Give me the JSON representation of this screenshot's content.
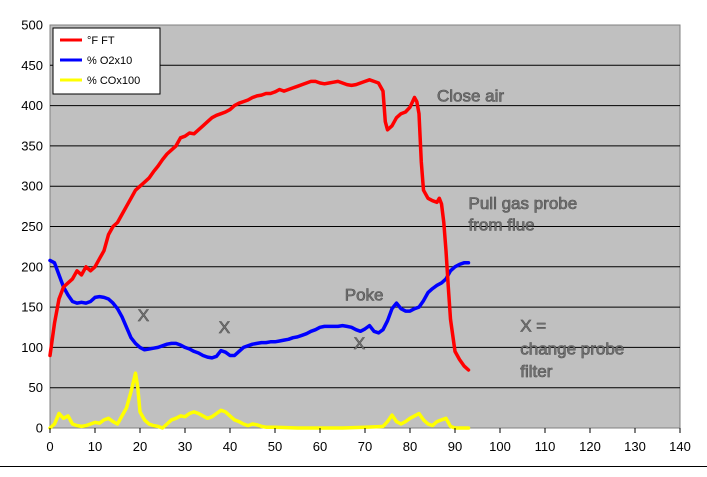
{
  "chart_data": {
    "type": "line",
    "xlim": [
      0,
      140
    ],
    "ylim": [
      0,
      500
    ],
    "x_ticks": [
      "0",
      "10",
      "20",
      "30",
      "40",
      "50",
      "60",
      "70",
      "80",
      "90",
      "100",
      "110",
      "120",
      "130",
      "140"
    ],
    "y_ticks": [
      "0",
      "50",
      "100",
      "150",
      "200",
      "250",
      "300",
      "350",
      "400",
      "450",
      "500"
    ],
    "grid": "horizontal",
    "legend_position": "top-left",
    "plot_background": "#c0c0c0",
    "series": [
      {
        "name": "°F FT",
        "color": "#ff0000",
        "points": [
          [
            0,
            90
          ],
          [
            1,
            130
          ],
          [
            2,
            160
          ],
          [
            3,
            175
          ],
          [
            4,
            180
          ],
          [
            5,
            185
          ],
          [
            6,
            195
          ],
          [
            7,
            190
          ],
          [
            8,
            200
          ],
          [
            9,
            195
          ],
          [
            10,
            200
          ],
          [
            11,
            210
          ],
          [
            12,
            220
          ],
          [
            13,
            240
          ],
          [
            14,
            250
          ],
          [
            15,
            255
          ],
          [
            16,
            265
          ],
          [
            17,
            275
          ],
          [
            18,
            285
          ],
          [
            19,
            295
          ],
          [
            20,
            300
          ],
          [
            21,
            305
          ],
          [
            22,
            310
          ],
          [
            23,
            318
          ],
          [
            24,
            325
          ],
          [
            25,
            333
          ],
          [
            26,
            340
          ],
          [
            27,
            345
          ],
          [
            28,
            350
          ],
          [
            29,
            360
          ],
          [
            30,
            362
          ],
          [
            31,
            366
          ],
          [
            32,
            365
          ],
          [
            33,
            370
          ],
          [
            34,
            375
          ],
          [
            35,
            380
          ],
          [
            36,
            385
          ],
          [
            37,
            388
          ],
          [
            38,
            390
          ],
          [
            39,
            392
          ],
          [
            40,
            395
          ],
          [
            41,
            400
          ],
          [
            42,
            403
          ],
          [
            43,
            405
          ],
          [
            44,
            407
          ],
          [
            45,
            410
          ],
          [
            46,
            412
          ],
          [
            47,
            413
          ],
          [
            48,
            415
          ],
          [
            49,
            415
          ],
          [
            50,
            417
          ],
          [
            51,
            420
          ],
          [
            52,
            418
          ],
          [
            53,
            420
          ],
          [
            54,
            422
          ],
          [
            55,
            424
          ],
          [
            56,
            426
          ],
          [
            57,
            428
          ],
          [
            58,
            430
          ],
          [
            59,
            430
          ],
          [
            60,
            428
          ],
          [
            61,
            427
          ],
          [
            62,
            428
          ],
          [
            63,
            429
          ],
          [
            64,
            430
          ],
          [
            65,
            428
          ],
          [
            66,
            426
          ],
          [
            67,
            425
          ],
          [
            68,
            426
          ],
          [
            69,
            428
          ],
          [
            70,
            430
          ],
          [
            71,
            432
          ],
          [
            72,
            430
          ],
          [
            73,
            428
          ],
          [
            74,
            418
          ],
          [
            74.5,
            380
          ],
          [
            75,
            370
          ],
          [
            76,
            375
          ],
          [
            77,
            385
          ],
          [
            78,
            390
          ],
          [
            79,
            392
          ],
          [
            80,
            398
          ],
          [
            81,
            410
          ],
          [
            81.5,
            405
          ],
          [
            82,
            390
          ],
          [
            82.5,
            330
          ],
          [
            83,
            295
          ],
          [
            84,
            285
          ],
          [
            85,
            282
          ],
          [
            86,
            280
          ],
          [
            86.5,
            285
          ],
          [
            87,
            278
          ],
          [
            87.5,
            255
          ],
          [
            88,
            220
          ],
          [
            88.5,
            175
          ],
          [
            89,
            135
          ],
          [
            90,
            95
          ],
          [
            91,
            85
          ],
          [
            92,
            77
          ],
          [
            93,
            72
          ]
        ]
      },
      {
        "name": "% O2x10",
        "color": "#0000ff",
        "points": [
          [
            0,
            208
          ],
          [
            1,
            205
          ],
          [
            2,
            190
          ],
          [
            3,
            175
          ],
          [
            4,
            165
          ],
          [
            5,
            157
          ],
          [
            6,
            155
          ],
          [
            7,
            156
          ],
          [
            8,
            155
          ],
          [
            9,
            157
          ],
          [
            10,
            162
          ],
          [
            11,
            163
          ],
          [
            12,
            162
          ],
          [
            13,
            160
          ],
          [
            14,
            155
          ],
          [
            15,
            148
          ],
          [
            16,
            138
          ],
          [
            17,
            125
          ],
          [
            18,
            112
          ],
          [
            19,
            105
          ],
          [
            20,
            100
          ],
          [
            21,
            97
          ],
          [
            22,
            98
          ],
          [
            23,
            99
          ],
          [
            24,
            100
          ],
          [
            25,
            102
          ],
          [
            26,
            104
          ],
          [
            27,
            105
          ],
          [
            28,
            105
          ],
          [
            29,
            103
          ],
          [
            30,
            100
          ],
          [
            31,
            98
          ],
          [
            32,
            95
          ],
          [
            33,
            93
          ],
          [
            34,
            90
          ],
          [
            35,
            88
          ],
          [
            36,
            87
          ],
          [
            37,
            89
          ],
          [
            38,
            96
          ],
          [
            39,
            94
          ],
          [
            40,
            90
          ],
          [
            41,
            90
          ],
          [
            42,
            95
          ],
          [
            43,
            100
          ],
          [
            44,
            102
          ],
          [
            45,
            104
          ],
          [
            46,
            105
          ],
          [
            47,
            106
          ],
          [
            48,
            106
          ],
          [
            49,
            107
          ],
          [
            50,
            107
          ],
          [
            51,
            108
          ],
          [
            52,
            109
          ],
          [
            53,
            110
          ],
          [
            54,
            112
          ],
          [
            55,
            113
          ],
          [
            56,
            115
          ],
          [
            57,
            117
          ],
          [
            58,
            120
          ],
          [
            59,
            122
          ],
          [
            60,
            125
          ],
          [
            61,
            126
          ],
          [
            62,
            126
          ],
          [
            63,
            126
          ],
          [
            64,
            126
          ],
          [
            65,
            127
          ],
          [
            66,
            126
          ],
          [
            67,
            125
          ],
          [
            68,
            122
          ],
          [
            69,
            120
          ],
          [
            70,
            123
          ],
          [
            71,
            127
          ],
          [
            72,
            120
          ],
          [
            73,
            118
          ],
          [
            74,
            122
          ],
          [
            75,
            133
          ],
          [
            76,
            148
          ],
          [
            77,
            155
          ],
          [
            78,
            148
          ],
          [
            79,
            145
          ],
          [
            80,
            145
          ],
          [
            81,
            148
          ],
          [
            82,
            150
          ],
          [
            83,
            158
          ],
          [
            84,
            168
          ],
          [
            85,
            173
          ],
          [
            86,
            177
          ],
          [
            87,
            180
          ],
          [
            88,
            185
          ],
          [
            89,
            195
          ],
          [
            90,
            200
          ],
          [
            91,
            203
          ],
          [
            92,
            205
          ],
          [
            93,
            205
          ]
        ]
      },
      {
        "name": "% COx100",
        "color": "#ffff00",
        "points": [
          [
            0,
            0
          ],
          [
            1,
            5
          ],
          [
            2,
            18
          ],
          [
            3,
            12
          ],
          [
            4,
            15
          ],
          [
            5,
            5
          ],
          [
            6,
            3
          ],
          [
            7,
            2
          ],
          [
            8,
            3
          ],
          [
            9,
            5
          ],
          [
            10,
            7
          ],
          [
            11,
            6
          ],
          [
            12,
            10
          ],
          [
            13,
            12
          ],
          [
            14,
            8
          ],
          [
            15,
            5
          ],
          [
            16,
            15
          ],
          [
            17,
            25
          ],
          [
            18,
            45
          ],
          [
            19,
            68
          ],
          [
            19.5,
            50
          ],
          [
            20,
            20
          ],
          [
            21,
            10
          ],
          [
            22,
            5
          ],
          [
            23,
            3
          ],
          [
            24,
            2
          ],
          [
            25,
            0
          ],
          [
            26,
            5
          ],
          [
            27,
            10
          ],
          [
            28,
            12
          ],
          [
            29,
            15
          ],
          [
            30,
            14
          ],
          [
            31,
            18
          ],
          [
            32,
            20
          ],
          [
            33,
            18
          ],
          [
            34,
            15
          ],
          [
            35,
            12
          ],
          [
            36,
            14
          ],
          [
            37,
            18
          ],
          [
            38,
            22
          ],
          [
            39,
            20
          ],
          [
            40,
            15
          ],
          [
            41,
            10
          ],
          [
            42,
            8
          ],
          [
            43,
            5
          ],
          [
            44,
            3
          ],
          [
            45,
            5
          ],
          [
            46,
            4
          ],
          [
            47,
            2
          ],
          [
            48,
            1
          ],
          [
            50,
            1
          ],
          [
            55,
            0
          ],
          [
            60,
            0
          ],
          [
            65,
            0
          ],
          [
            70,
            1
          ],
          [
            74,
            2
          ],
          [
            75,
            8
          ],
          [
            76,
            16
          ],
          [
            77,
            8
          ],
          [
            78,
            5
          ],
          [
            79,
            8
          ],
          [
            80,
            12
          ],
          [
            81,
            15
          ],
          [
            82,
            18
          ],
          [
            83,
            10
          ],
          [
            84,
            5
          ],
          [
            85,
            3
          ],
          [
            86,
            8
          ],
          [
            87,
            10
          ],
          [
            88,
            12
          ],
          [
            89,
            2
          ],
          [
            90,
            0
          ],
          [
            93,
            0
          ]
        ]
      }
    ],
    "annotations": [
      {
        "text": "Close air",
        "x": 86,
        "y": 405
      },
      {
        "text": "Pull gas probe",
        "x": 93,
        "y": 272
      },
      {
        "text": "from flue",
        "x": 93,
        "y": 245
      },
      {
        "text": "Poke",
        "x": 65.5,
        "y": 158
      },
      {
        "text": "X",
        "x": 19.5,
        "y": 133
      },
      {
        "text": "X",
        "x": 37.5,
        "y": 118
      },
      {
        "text": "X",
        "x": 67.5,
        "y": 98
      },
      {
        "text": "X =",
        "x": 104.5,
        "y": 120
      },
      {
        "text": "change probe",
        "x": 104.5,
        "y": 91
      },
      {
        "text": "filter",
        "x": 104.5,
        "y": 63
      }
    ]
  }
}
